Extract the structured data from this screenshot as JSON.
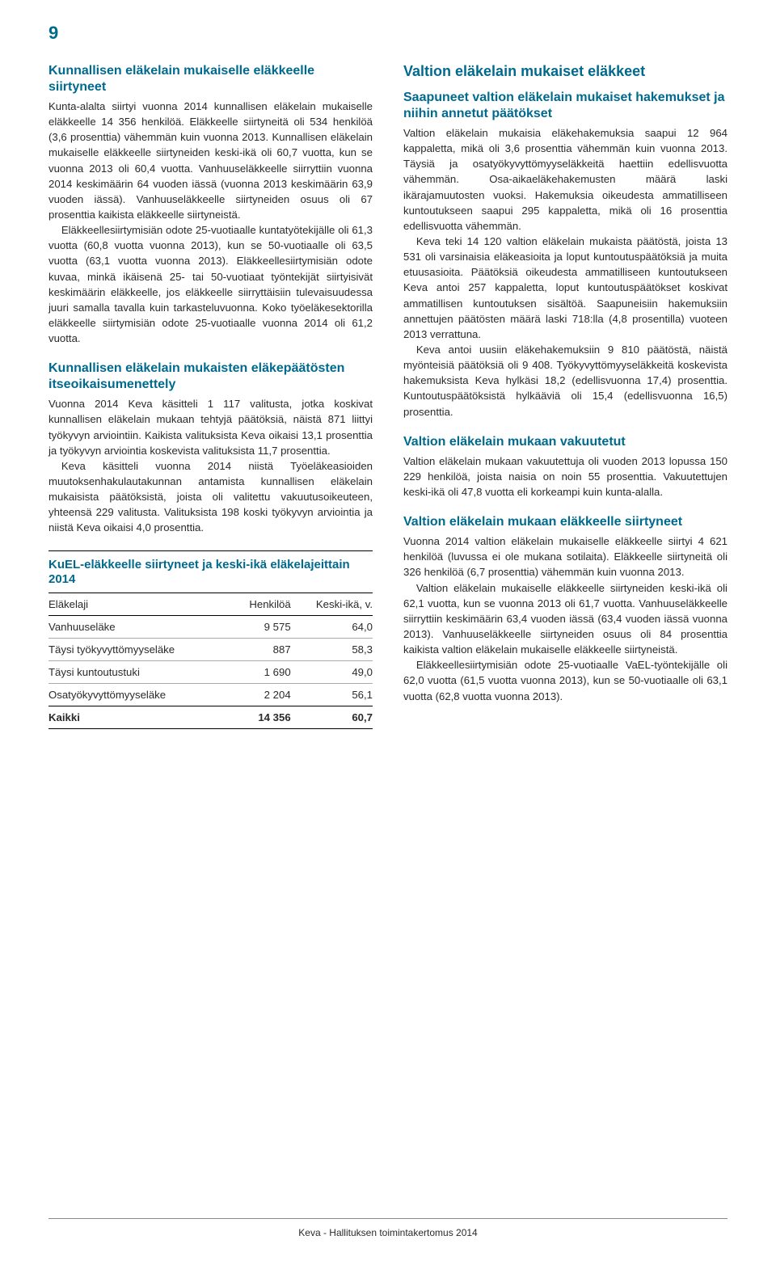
{
  "pageNumber": "9",
  "footer": "Keva - Hallituksen toimintakertomus 2014",
  "left": {
    "h1": "Kunnallisen eläkelain mukaiselle eläkkeelle siirtyneet",
    "p1": "Kunta-alalta siirtyi vuonna 2014 kunnallisen eläkelain mukaiselle eläkkeelle 14 356 henkilöä. Eläkkeelle siirtyneitä oli 534 henkilöä (3,6 prosenttia) vähemmän kuin vuonna 2013. Kunnallisen eläkelain mukaiselle eläkkeelle siirtyneiden keski-ikä oli 60,7 vuotta, kun se vuonna 2013 oli 60,4 vuotta. Vanhuuseläkkeelle siirryttiin vuonna 2014 keskimäärin 64 vuoden iässä (vuonna 2013 keskimäärin 63,9 vuoden iässä). Vanhuuseläkkeelle siirtyneiden osuus oli 67 prosenttia kaikista eläkkeelle siirtyneistä.",
    "p2": "Eläkkeellesiirtymisiän odote 25-vuotiaalle kuntatyötekijälle oli 61,3 vuotta (60,8 vuotta vuonna 2013), kun se 50-vuotiaalle oli 63,5 vuotta (63,1 vuotta vuonna 2013). Eläkkeellesiirtymisiän odote kuvaa, minkä ikäisenä 25- tai 50-vuotiaat työntekijät siirtyisivät keskimäärin eläkkeelle, jos eläkkeelle siirryttäisiin tulevaisuudessa juuri samalla tavalla kuin tarkasteluvuonna. Koko työeläkesektorilla eläkkeelle siirtymisiän odote 25-vuotiaalle vuonna 2014 oli 61,2 vuotta.",
    "h2": "Kunnallisen eläkelain mukaisten eläkepäätösten itseoikaisumenettely",
    "p3": "Vuonna 2014 Keva käsitteli 1 117 valitusta, jotka koskivat kunnallisen eläkelain mukaan tehtyjä päätöksiä, näistä 871 liittyi työkyvyn arviointiin. Kaikista valituksista Keva oikaisi 13,1 prosenttia ja työkyvyn arviointia koskevista valituksista 11,7 prosenttia.",
    "p4": "Keva käsitteli vuonna 2014 niistä Työeläkeasioiden muutoksenhakulautakunnan antamista kunnallisen eläkelain mukaisista päätöksistä, joista oli valitettu vakuutusoikeuteen, yhteensä 229 valitusta. Valituksista 198 koski työkyvyn arviointia ja niistä Keva oikaisi 4,0 prosenttia."
  },
  "table": {
    "title": "KuEL-eläkkeelle siirtyneet ja keski-ikä eläkelajeittain 2014",
    "columns": [
      "Eläkelaji",
      "Henkilöä",
      "Keski-ikä, v."
    ],
    "col_align": [
      "left",
      "right",
      "right"
    ],
    "rows": [
      [
        "Vanhuuseläke",
        "9 575",
        "64,0"
      ],
      [
        "Täysi työkyvyttömyyseläke",
        "887",
        "58,3"
      ],
      [
        "Täysi kuntoutustuki",
        "1 690",
        "49,0"
      ],
      [
        "Osatyökyvyttömyyseläke",
        "2 204",
        "56,1"
      ]
    ],
    "total": [
      "Kaikki",
      "14 356",
      "60,7"
    ],
    "border_color": "#000000",
    "title_color": "#006a8e",
    "fontsize": 13.2
  },
  "right": {
    "h0": "Valtion eläkelain mukaiset eläkkeet",
    "h1": "Saapuneet valtion eläkelain mukaiset hakemukset ja niihin annetut päätökset",
    "p1": "Valtion eläkelain mukaisia eläkehakemuksia saapui 12 964 kappaletta, mikä oli 3,6 prosenttia vähemmän kuin vuonna 2013. Täysiä ja osatyökyvyttömyyseläkkeitä haettiin edellisvuotta vähemmän. Osa-aikaeläkehakemusten määrä laski ikärajamuutosten vuoksi. Hakemuksia oikeudesta ammatilliseen kuntoutukseen saapui 295 kappaletta, mikä oli 16 prosenttia edellisvuotta vähemmän.",
    "p2": "Keva teki 14 120 valtion eläkelain mukaista päätöstä, joista 13 531 oli varsinaisia eläkeasioita ja loput kuntoutuspäätöksiä ja muita etuusasioita. Päätöksiä oikeudesta ammatilliseen kuntoutukseen Keva antoi 257 kappaletta, loput kuntoutuspäätökset koskivat ammatillisen kuntoutuksen sisältöä. Saapuneisiin hakemuksiin annettujen päätösten määrä laski 718:lla (4,8 prosentilla) vuoteen 2013 verrattuna.",
    "p3": "Keva antoi uusiin eläkehakemuksiin 9 810 päätöstä, näistä myönteisiä päätöksiä oli 9 408. Työkyvyttömyyseläkkeitä koskevista hakemuksista Keva hylkäsi 18,2 (edellisvuonna 17,4) prosenttia. Kuntoutuspäätöksistä hylkääviä oli 15,4 (edellisvuonna 16,5) prosenttia.",
    "h2": "Valtion eläkelain mukaan vakuutetut",
    "p4": "Valtion eläkelain mukaan vakuutettuja oli vuoden 2013 lopussa 150 229 henkilöä, joista naisia on noin 55 prosenttia. Vakuutettujen keski-ikä oli 47,8 vuotta eli korkeampi kuin kunta-alalla.",
    "h3": "Valtion eläkelain mukaan eläkkeelle siirtyneet",
    "p5": "Vuonna 2014 valtion eläkelain mukaiselle eläkkeelle siirtyi 4 621 henkilöä (luvussa ei ole mukana sotilaita). Eläkkeelle siirtyneitä oli 326 henkilöä (6,7 prosenttia) vähemmän kuin vuonna 2013.",
    "p6": "Valtion eläkelain mukaiselle eläkkeelle siirtyneiden keski-ikä oli 62,1 vuotta, kun se vuonna 2013 oli 61,7 vuotta. Vanhuuseläkkeelle siirryttiin keskimäärin 63,4 vuoden iässä (63,4 vuoden iässä vuonna 2013). Vanhuuseläkkeelle siirtyneiden osuus oli 84 prosenttia kaikista valtion eläkelain mukaiselle eläkkeelle siirtyneistä.",
    "p7": "Eläkkeellesiirtymisiän odote 25-vuotiaalle VaEL-työntekijälle oli 62,0 vuotta (61,5 vuotta vuonna 2013), kun se 50-vuotiaalle oli 63,1 vuotta (62,8 vuotta vuonna 2013)."
  },
  "colors": {
    "heading": "#006a8e",
    "body": "#2a2a2a",
    "background": "#ffffff"
  },
  "typography": {
    "body_fontsize_pt": 10,
    "heading_fontsize_pt": 12,
    "main_heading_fontsize_pt": 14,
    "font_family": "sans-serif"
  }
}
